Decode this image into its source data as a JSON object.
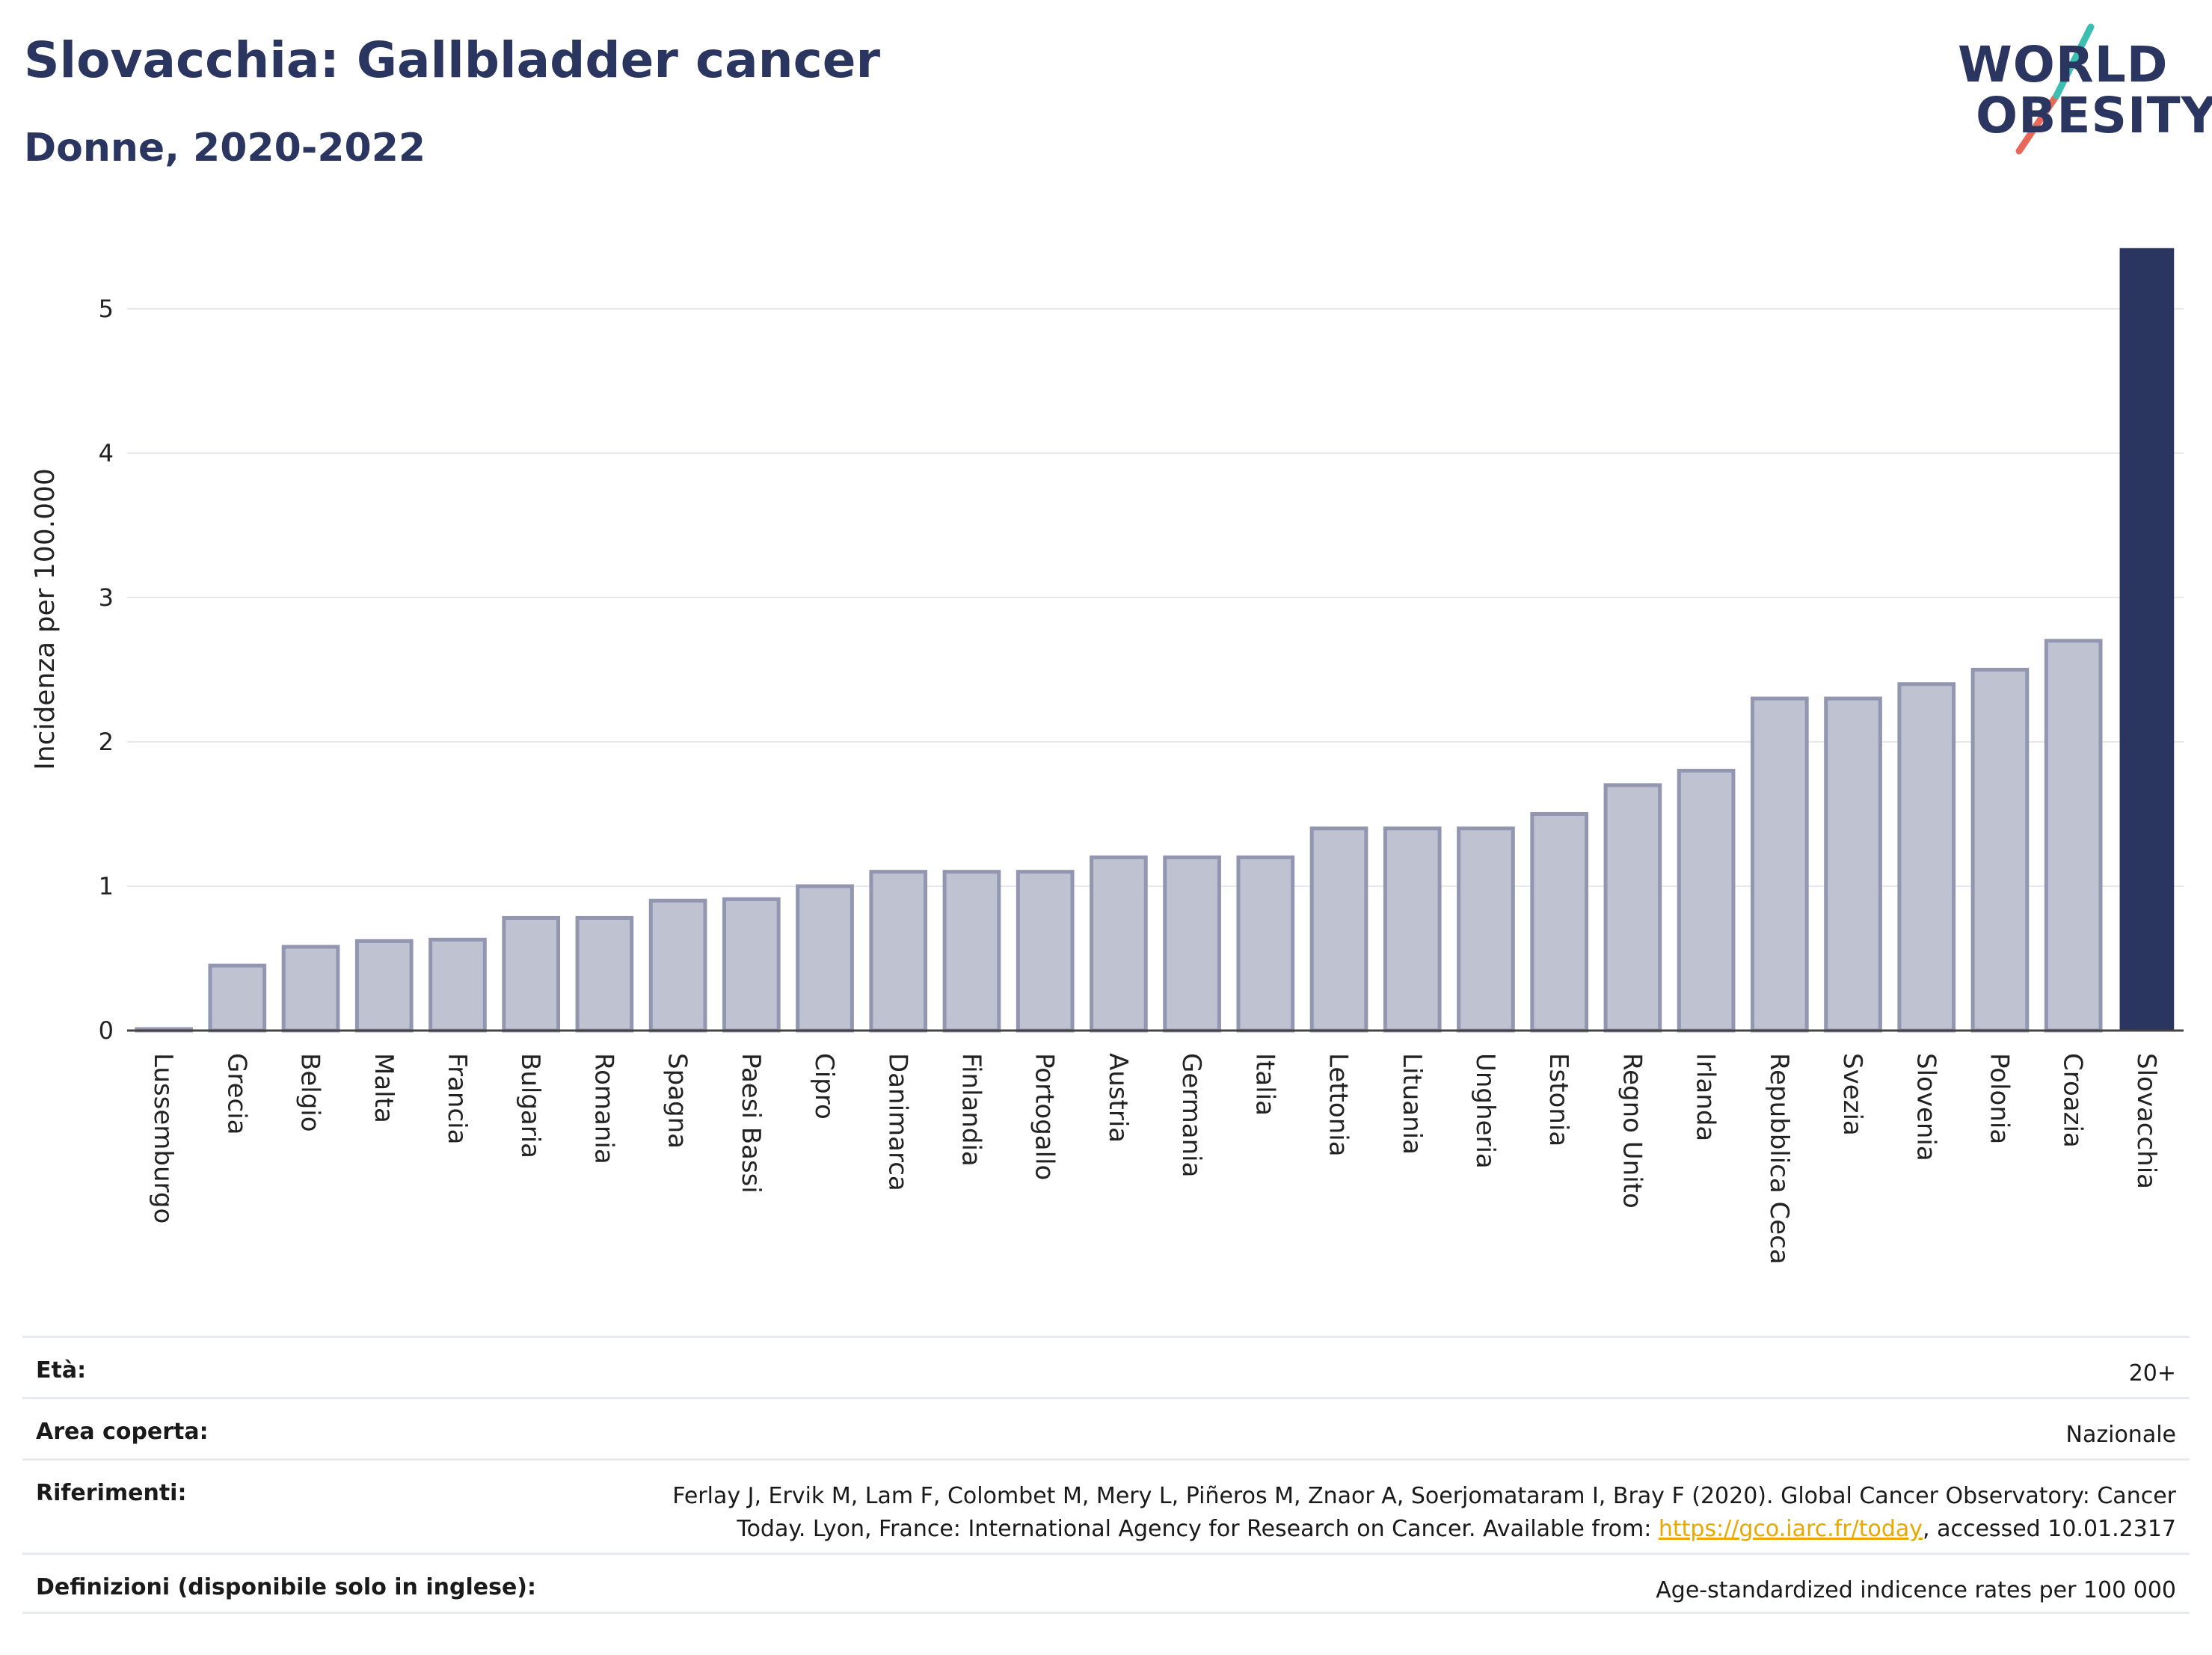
{
  "header": {
    "title": "Slovacchia: Gallbladder cancer",
    "subtitle": "Donne, 2020-2022"
  },
  "logo": {
    "line1": "WORLD",
    "line2": "OBESITY",
    "accent_colors": [
      "#3bbfb0",
      "#e8695a"
    ]
  },
  "colors": {
    "bar_default": "#bfc2d0",
    "bar_border": "#9296b0",
    "bar_highlight": "#2a3560",
    "grid": "#e6e8ee",
    "text": "#2a3560"
  },
  "chart_data": {
    "type": "bar",
    "ylabel": "Incidenza per 100.000",
    "xlabel": "",
    "ylim": [
      0,
      5.45
    ],
    "yticks": [
      0,
      1,
      2,
      3,
      4,
      5
    ],
    "grid": true,
    "highlight": "Slovacchia",
    "categories": [
      "Lussemburgo",
      "Grecia",
      "Belgio",
      "Malta",
      "Francia",
      "Bulgaria",
      "Romania",
      "Spagna",
      "Paesi Bassi",
      "Cipro",
      "Danimarca",
      "Finlandia",
      "Portogallo",
      "Austria",
      "Germania",
      "Italia",
      "Lettonia",
      "Lituania",
      "Ungheria",
      "Estonia",
      "Regno Unito",
      "Irlanda",
      "Repubblica Ceca",
      "Svezia",
      "Slovenia",
      "Polonia",
      "Croazia",
      "Slovacchia"
    ],
    "values": [
      0.01,
      0.45,
      0.58,
      0.62,
      0.63,
      0.78,
      0.78,
      0.9,
      0.91,
      1.0,
      1.1,
      1.1,
      1.1,
      1.2,
      1.2,
      1.2,
      1.4,
      1.4,
      1.4,
      1.5,
      1.7,
      1.8,
      2.3,
      2.3,
      2.4,
      2.5,
      2.7,
      5.42
    ]
  },
  "footer": {
    "age_label": "Età:",
    "age_value": "20+",
    "area_label": "Area coperta:",
    "area_value": "Nazionale",
    "ref_label": "Riferimenti:",
    "ref_line1": "Ferlay J, Ervik M, Lam F, Colombet M, Mery L, Piñeros M, Znaor A, Soerjomataram I, Bray F (2020). Global Cancer Observatory: Cancer",
    "ref_line2a": "Today. Lyon, France: International Agency for Research on Cancer. Available from: ",
    "ref_link": "https://gco.iarc.fr/today",
    "ref_line2b": ", accessed 10.01.2317",
    "def_label": "Definizioni (disponibile solo in inglese):",
    "def_value": "Age-standardized indicence rates per 100 000"
  }
}
